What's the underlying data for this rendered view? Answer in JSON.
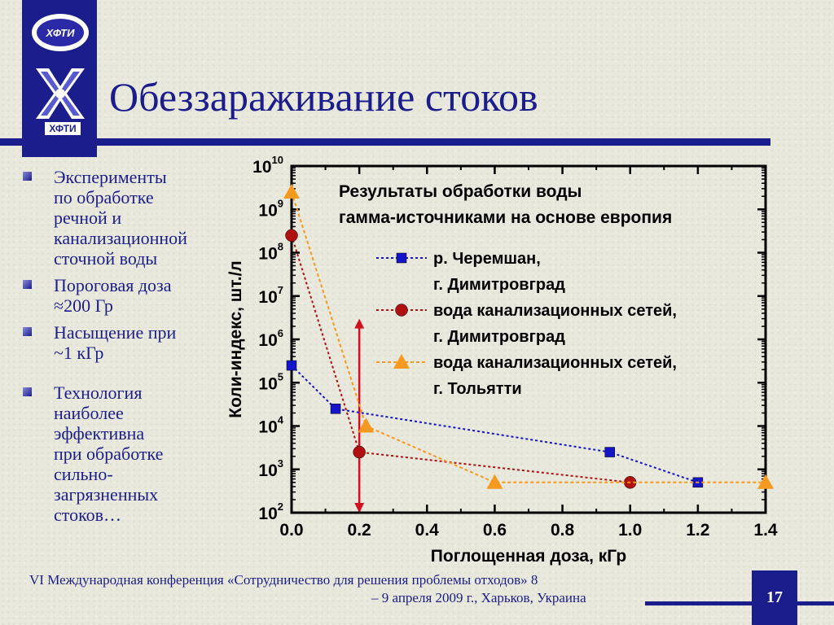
{
  "logo": {
    "oval_text": "ХФТИ",
    "caption": "ХФТИ"
  },
  "slide": {
    "title": "Обеззараживание стоков",
    "bullets": [
      {
        "lines": [
          "Эксперименты",
          "по обработке",
          "речной и",
          "канализационной",
          "сточной воды"
        ]
      },
      {
        "lines": [
          "Пороговая доза",
          "≈200 Гр"
        ]
      },
      {
        "lines": [
          "Насыщение при",
          "~1 кГр"
        ]
      },
      {
        "lines": [
          "Технология",
          "наиболее",
          "эффективна",
          "при обработке",
          "сильно-",
          "загрязненных",
          "стоков…"
        ]
      }
    ],
    "footer_line1": "VI Международная конференция «Сотрудничество для решения проблемы отходов» 8",
    "footer_line2": "– 9 апреля 2009 г., Харьков, Украина",
    "page_number": "17"
  },
  "colors": {
    "brand": "#1b1d8c",
    "series_blue": "#1414c8",
    "series_red": "#b01010",
    "series_orange": "#f59a1e",
    "arrow": "#d01020"
  },
  "chart_data": {
    "type": "line",
    "title_lines": [
      "Результаты обработки воды",
      "гамма-источниками на основе европия"
    ],
    "xlabel": "Поглощенная доза, кГр",
    "ylabel": "Коли-индекс, шт./л",
    "xlim": [
      0,
      1.4
    ],
    "ylim": [
      100,
      10000000000
    ],
    "yscale": "log",
    "xticks": [
      "0.0",
      "0.2",
      "0.4",
      "0.6",
      "0.8",
      "1.0",
      "1.2",
      "1.4"
    ],
    "yticks": [
      {
        "base": "10",
        "exp": "2"
      },
      {
        "base": "10",
        "exp": "3"
      },
      {
        "base": "10",
        "exp": "4"
      },
      {
        "base": "10",
        "exp": "5"
      },
      {
        "base": "10",
        "exp": "6"
      },
      {
        "base": "10",
        "exp": "7"
      },
      {
        "base": "10",
        "exp": "8"
      },
      {
        "base": "10",
        "exp": "9"
      },
      {
        "base": "10",
        "exp": "10"
      }
    ],
    "series": [
      {
        "name_lines": [
          "р. Черемшан,",
          "г. Димитровград"
        ],
        "marker": "square",
        "x": [
          0.0,
          0.13,
          0.94,
          1.2
        ],
        "y": [
          250000,
          25000,
          2500,
          500
        ]
      },
      {
        "name_lines": [
          "вода канализационных сетей,",
          "г. Димитровград"
        ],
        "marker": "circle",
        "x": [
          0.0,
          0.2,
          1.0
        ],
        "y": [
          250000000,
          2500,
          500
        ]
      },
      {
        "name_lines": [
          "вода канализационных сетей,",
          "г. Тольятти"
        ],
        "marker": "triangle",
        "x": [
          0.0,
          0.22,
          0.6,
          1.4
        ],
        "y": [
          2500000000,
          10000,
          500,
          500
        ]
      }
    ],
    "annotation": {
      "type": "vertical-arrow",
      "x": 0.2,
      "y_from": 3000000,
      "y_to": 100
    },
    "grid": false,
    "legend_position": "top-right"
  }
}
